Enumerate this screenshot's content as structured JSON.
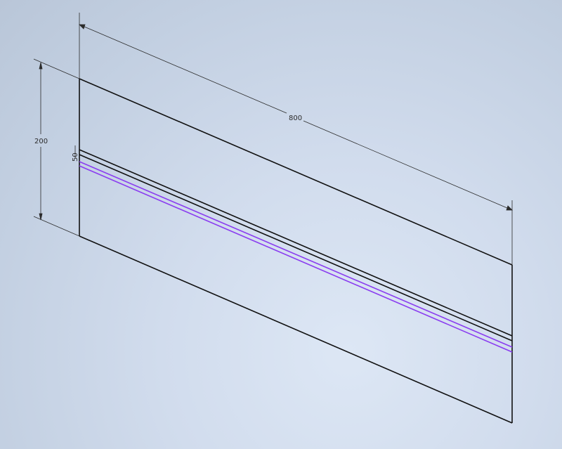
{
  "viewport": {
    "background_color": "#cbd6e7",
    "edge_color": "#111111",
    "highlight_color": "#8a3cf0"
  },
  "dimensions": {
    "length": "800",
    "height": "200",
    "small_offset": "50"
  }
}
